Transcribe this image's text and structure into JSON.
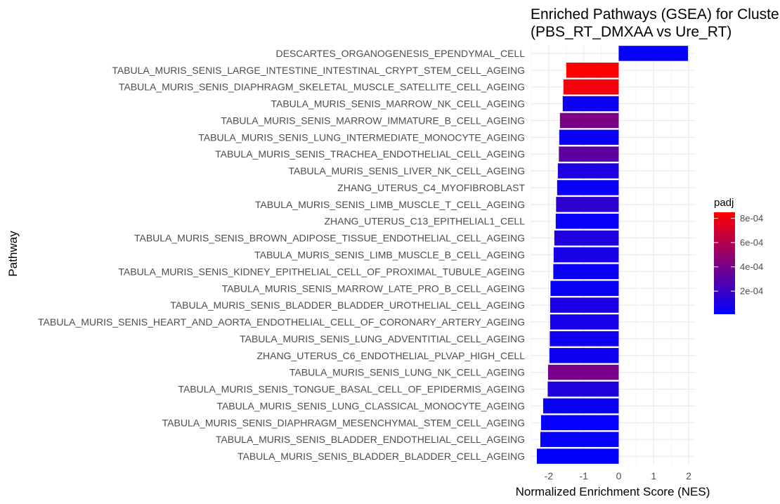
{
  "chart_data": {
    "type": "bar",
    "orientation": "horizontal",
    "title": "Enriched Pathways (GSEA) for Cluster",
    "subtitle": "(PBS_RT_DMXAA vs Ure_RT)",
    "xlabel": "Normalized Enrichment Score (NES)",
    "ylabel": "Pathway",
    "xlim": [
      -2.5,
      2.2
    ],
    "xticks": [
      -2,
      -1,
      0,
      1,
      2
    ],
    "xtick_labels": [
      "-2",
      "-1",
      "0",
      "1",
      "2"
    ],
    "grid": true,
    "legend": {
      "title": "padj",
      "position": "right",
      "min": 1e-05,
      "max": 0.00085,
      "low_color": "#0000ff",
      "high_color": "#ff0000",
      "ticks": [
        0.0002,
        0.0004,
        0.0006,
        0.0008
      ],
      "tick_labels": [
        "2e-04",
        "4e-04",
        "6e-04",
        "8e-04"
      ]
    },
    "categories": [
      "DESCARTES_ORGANOGENESIS_EPENDYMAL_CELL",
      "TABULA_MURIS_SENIS_LARGE_INTESTINE_INTESTINAL_CRYPT_STEM_CELL_AGEING",
      "TABULA_MURIS_SENIS_DIAPHRAGM_SKELETAL_MUSCLE_SATELLITE_CELL_AGEING",
      "TABULA_MURIS_SENIS_MARROW_NK_CELL_AGEING",
      "TABULA_MURIS_SENIS_MARROW_IMMATURE_B_CELL_AGEING",
      "TABULA_MURIS_SENIS_LUNG_INTERMEDIATE_MONOCYTE_AGEING",
      "TABULA_MURIS_SENIS_TRACHEA_ENDOTHELIAL_CELL_AGEING",
      "TABULA_MURIS_SENIS_LIVER_NK_CELL_AGEING",
      "ZHANG_UTERUS_C4_MYOFIBROBLAST",
      "TABULA_MURIS_SENIS_LIMB_MUSCLE_T_CELL_AGEING",
      "ZHANG_UTERUS_C13_EPITHELIAL1_CELL",
      "TABULA_MURIS_SENIS_BROWN_ADIPOSE_TISSUE_ENDOTHELIAL_CELL_AGEING",
      "TABULA_MURIS_SENIS_LIMB_MUSCLE_B_CELL_AGEING",
      "TABULA_MURIS_SENIS_KIDNEY_EPITHELIAL_CELL_OF_PROXIMAL_TUBULE_AGEING",
      "TABULA_MURIS_SENIS_MARROW_LATE_PRO_B_CELL_AGEING",
      "TABULA_MURIS_SENIS_BLADDER_BLADDER_UROTHELIAL_CELL_AGEING",
      "TABULA_MURIS_SENIS_HEART_AND_AORTA_ENDOTHELIAL_CELL_OF_CORONARY_ARTERY_AGEING",
      "TABULA_MURIS_SENIS_LUNG_ADVENTITIAL_CELL_AGEING",
      "ZHANG_UTERUS_C6_ENDOTHELIAL_PLVAP_HIGH_CELL",
      "TABULA_MURIS_SENIS_LUNG_NK_CELL_AGEING",
      "TABULA_MURIS_SENIS_TONGUE_BASAL_CELL_OF_EPIDERMIS_AGEING",
      "TABULA_MURIS_SENIS_LUNG_CLASSICAL_MONOCYTE_AGEING",
      "TABULA_MURIS_SENIS_DIAPHRAGM_MESENCHYMAL_STEM_CELL_AGEING",
      "TABULA_MURIS_SENIS_BLADDER_ENDOTHELIAL_CELL_AGEING",
      "TABULA_MURIS_SENIS_BLADDER_BLADDER_CELL_AGEING"
    ],
    "values": [
      1.98,
      -1.5,
      -1.58,
      -1.6,
      -1.68,
      -1.7,
      -1.71,
      -1.74,
      -1.76,
      -1.79,
      -1.8,
      -1.84,
      -1.86,
      -1.87,
      -1.95,
      -1.96,
      -1.96,
      -1.97,
      -1.98,
      -2.02,
      -2.03,
      -2.16,
      -2.22,
      -2.24,
      -2.34
    ],
    "padj": [
      2e-05,
      0.00085,
      0.00082,
      5e-05,
      0.00042,
      4e-05,
      0.00032,
      0.00011,
      4e-05,
      0.00016,
      3e-05,
      0.00012,
      9e-05,
      4e-05,
      4e-05,
      0.0001,
      8e-05,
      6e-05,
      5e-05,
      0.0004,
      0.00012,
      4e-05,
      2e-05,
      2e-05,
      1e-05
    ]
  }
}
